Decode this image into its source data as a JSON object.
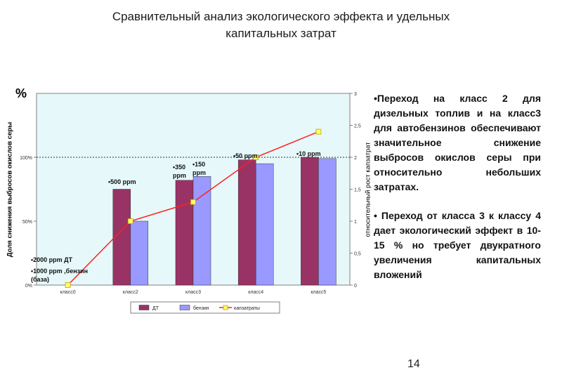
{
  "slide": {
    "title_line1": "Сравнительный анализ экологического эффекта и удельных",
    "title_line2": "капитальных затрат",
    "page_number": "14",
    "bullet1": "•Переход на класс 2 для дизельных топлив и на класс3 для автобензинов обеспечивают значительное снижение выбросов окислов серы при относительно небольших затратах.",
    "bullet2": "• Переход от класса 3 к классу 4 дает экологический эффект в 10-15 % но требует двукратного увеличения капитальных вложений"
  },
  "chart_data": {
    "type": "bar",
    "unit_symbol": "%",
    "ylabel_left": "Доля снижения выбросов окислов серы",
    "ylabel_right": "относительный рост капзатрат",
    "categories": [
      "класс0",
      "класс2",
      "класс3",
      "класс4",
      "класс5"
    ],
    "left_axis": {
      "ylim": [
        0,
        150
      ],
      "ticks": [
        "0%",
        "50%",
        "100%"
      ],
      "tick_values": [
        0,
        50,
        100
      ]
    },
    "right_axis": {
      "ylim": [
        0,
        3
      ],
      "ticks": [
        "0",
        "0,5",
        "1",
        "1,5",
        "2",
        "2,5",
        "3"
      ],
      "tick_values": [
        0,
        0.5,
        1,
        1.5,
        2,
        2.5,
        3
      ]
    },
    "reference_line": 100,
    "series": [
      {
        "name": "ДТ",
        "kind": "bar",
        "axis": "left",
        "color": "#993366",
        "values": [
          0,
          75,
          82,
          98,
          100
        ]
      },
      {
        "name": "бензин",
        "kind": "bar",
        "axis": "left",
        "color": "#9999ff",
        "values": [
          0,
          50,
          85,
          95,
          99
        ]
      },
      {
        "name": "капзатраты",
        "kind": "line",
        "axis": "right",
        "color": "#ff2020",
        "marker_color": "#ffff66",
        "values": [
          0,
          1.0,
          1.3,
          2.0,
          2.4
        ]
      }
    ],
    "annotations": [
      {
        "id": "a1",
        "text": "•2000 ppm  ДТ"
      },
      {
        "id": "a2",
        "text": "•1000 ppm ,бензин (база)"
      },
      {
        "id": "a3",
        "text": "•500 ppm"
      },
      {
        "id": "a4",
        "text": "•350 ppm"
      },
      {
        "id": "a5",
        "text": "•150 ppm"
      },
      {
        "id": "a6",
        "text": "•50 ppm"
      },
      {
        "id": "a7",
        "text": "•10 ppm"
      }
    ],
    "plot_background": "#e6f8fa",
    "grid": false,
    "legend_position": "bottom"
  }
}
